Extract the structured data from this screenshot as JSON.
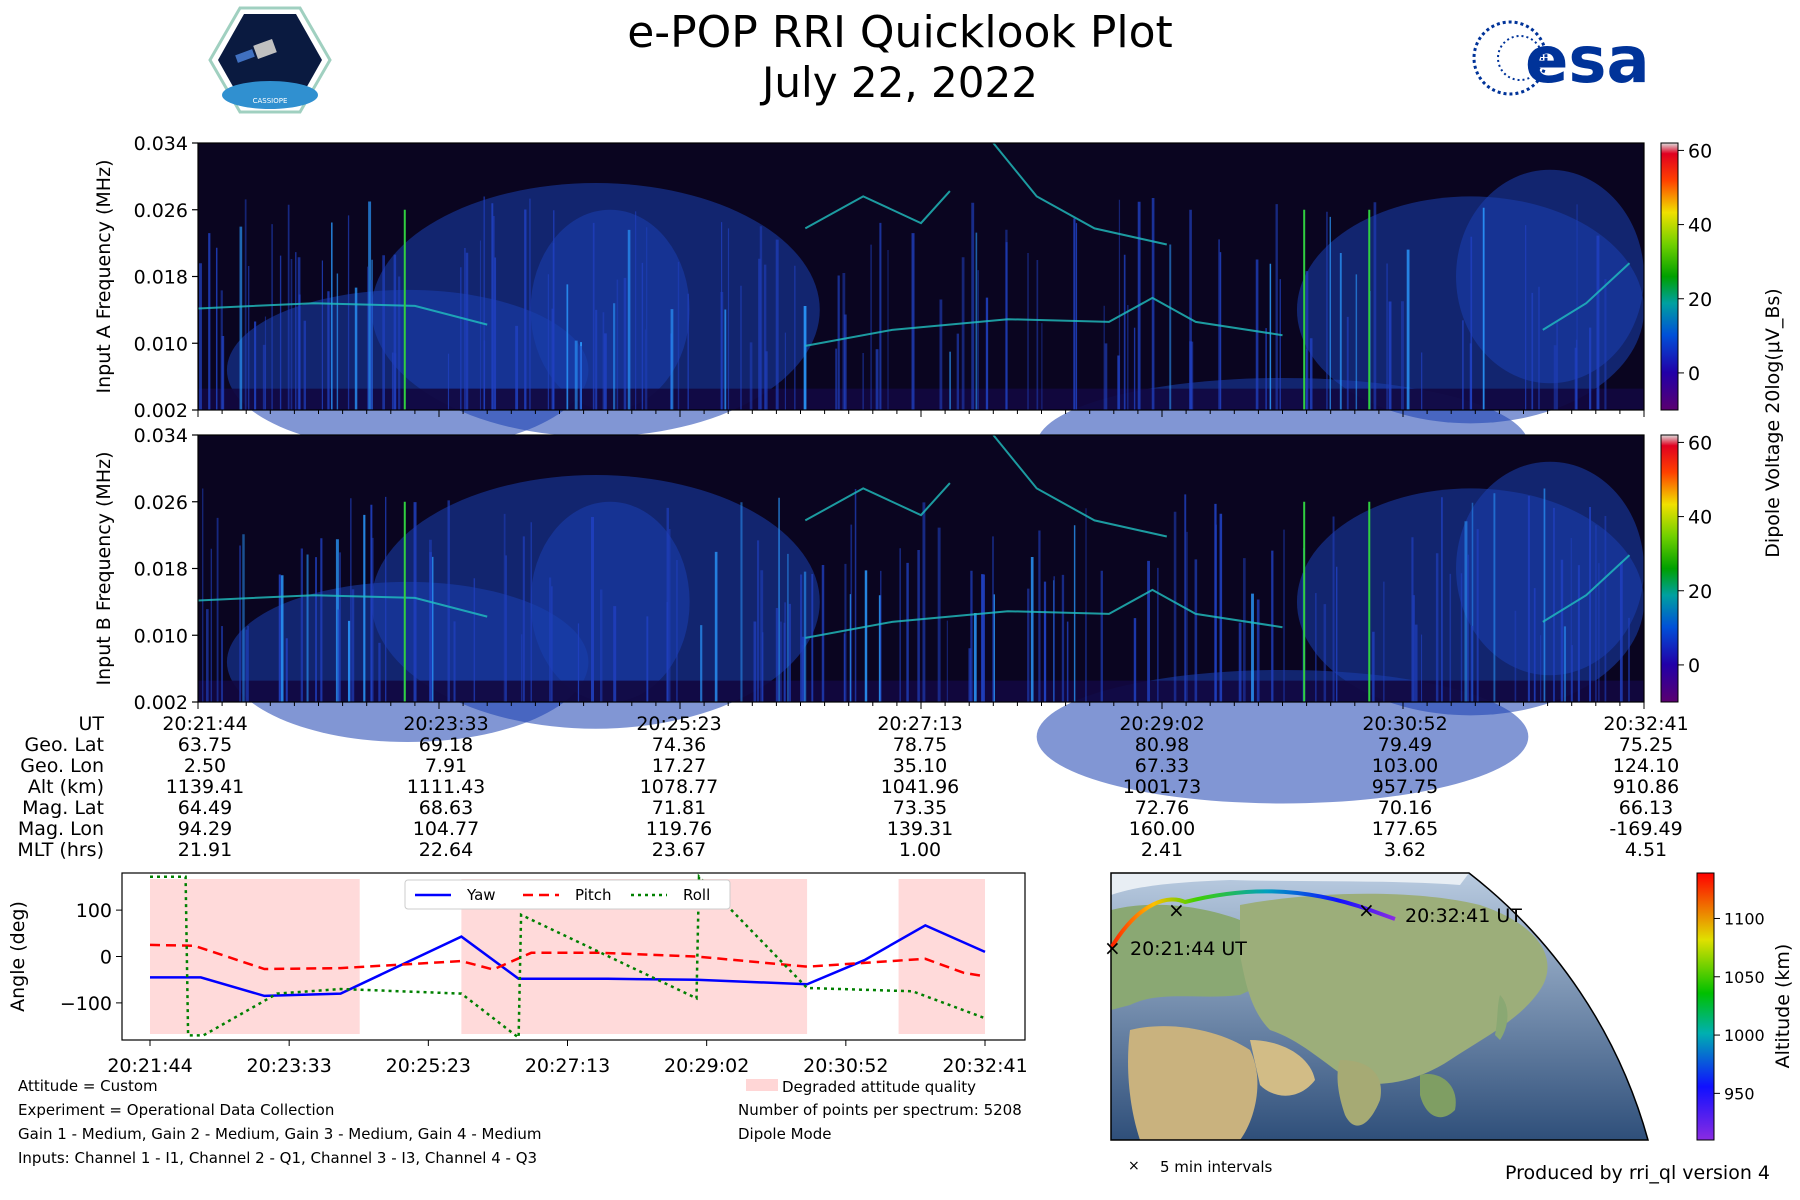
{
  "header": {
    "title": "e-POP RRI Quicklook Plot",
    "date": "July 22, 2022",
    "left_logo_text": "CASSIOPE",
    "right_logo_text": "esa"
  },
  "colors": {
    "spectrogram_bg": "#0a0520",
    "yaw": "#0000ff",
    "pitch": "#ff0000",
    "roll": "#008000",
    "degraded": "#ffdada",
    "esa_blue": "#003399"
  },
  "chart_data": [
    {
      "type": "heatmap",
      "ylabel": "Input A Frequency (MHz)",
      "yticks": [
        "0.002",
        "0.010",
        "0.018",
        "0.026",
        "0.034"
      ],
      "ylim": [
        0.002,
        0.034
      ],
      "colorbar": {
        "label": "Dipole Voltage 20log(μV_Bs)",
        "ticks": [
          "0",
          "20",
          "40",
          "60"
        ],
        "range": [
          -10,
          62
        ]
      }
    },
    {
      "type": "heatmap",
      "ylabel": "Input B Frequency (MHz)",
      "yticks": [
        "0.002",
        "0.010",
        "0.018",
        "0.026",
        "0.034"
      ],
      "ylim": [
        0.002,
        0.034
      ],
      "colorbar": {
        "label": "Dipole Voltage 20log(μV_Bs)",
        "ticks": [
          "0",
          "20",
          "40",
          "60"
        ],
        "range": [
          -10,
          62
        ]
      }
    },
    {
      "type": "table",
      "row_labels": [
        "UT",
        "Geo. Lat",
        "Geo. Lon",
        "Alt (km)",
        "Mag. Lat",
        "Mag. Lon",
        "MLT (hrs)"
      ],
      "columns": [
        [
          "20:21:44",
          "63.75",
          "2.50",
          "1139.41",
          "64.49",
          "94.29",
          "21.91"
        ],
        [
          "20:23:33",
          "69.18",
          "7.91",
          "1111.43",
          "68.63",
          "104.77",
          "22.64"
        ],
        [
          "20:25:23",
          "74.36",
          "17.27",
          "1078.77",
          "71.81",
          "119.76",
          "23.67"
        ],
        [
          "20:27:13",
          "78.75",
          "35.10",
          "1041.96",
          "73.35",
          "139.31",
          "1.00"
        ],
        [
          "20:29:02",
          "80.98",
          "67.33",
          "1001.73",
          "72.76",
          "160.00",
          "2.41"
        ],
        [
          "20:30:52",
          "79.49",
          "103.00",
          "957.75",
          "70.16",
          "177.65",
          "3.62"
        ],
        [
          "20:32:41",
          "75.25",
          "124.10",
          "910.86",
          "66.13",
          "-169.49",
          "4.51"
        ]
      ]
    },
    {
      "type": "line",
      "ylabel": "Angle (deg)",
      "yticks": [
        "100",
        "0",
        "−100"
      ],
      "ylim": [
        -180,
        180
      ],
      "xlim": [
        0,
        657
      ],
      "xticks": [
        "20:21:44",
        "20:23:33",
        "20:25:23",
        "20:27:13",
        "20:29:02",
        "20:30:52",
        "20:32:41"
      ],
      "legend": "top-center",
      "degraded_intervals": [
        [
          0,
          165
        ],
        [
          245,
          517
        ],
        [
          589,
          657
        ]
      ],
      "series": [
        {
          "name": "Yaw",
          "style": "solid",
          "x": [
            0,
            40,
            90,
            150,
            245,
            290,
            360,
            430,
            517,
            562,
            610,
            657
          ],
          "y": [
            -45,
            -45,
            -85,
            -80,
            43,
            -48,
            -48,
            -50,
            -60,
            -8,
            67,
            10
          ]
        },
        {
          "name": "Pitch",
          "style": "dashed",
          "x": [
            0,
            35,
            90,
            150,
            245,
            270,
            300,
            355,
            430,
            517,
            610,
            640,
            657
          ],
          "y": [
            25,
            23,
            -27,
            -25,
            -10,
            -28,
            8,
            8,
            0,
            -22,
            -5,
            -35,
            -43
          ]
        },
        {
          "name": "Roll",
          "style": "dotted",
          "x": [
            0,
            28,
            30,
            42,
            100,
            150,
            245,
            290,
            292,
            430,
            432,
            517,
            600,
            657
          ],
          "y": [
            172,
            172,
            -170,
            -170,
            -80,
            -70,
            -80,
            -175,
            90,
            -90,
            172,
            -68,
            -75,
            -133
          ]
        }
      ]
    },
    {
      "type": "scatter",
      "title": "",
      "colorbar": {
        "label": "Altitude (km)",
        "ticks": [
          "950",
          "1000",
          "1050",
          "1100"
        ],
        "range": [
          910,
          1139
        ]
      },
      "track_labels": [
        "20:21:44 UT",
        "20:32:41 UT"
      ],
      "legend": "× 5 min intervals"
    }
  ],
  "footer": {
    "attitude": "Attitude = Custom",
    "experiment": "Experiment = Operational Data Collection",
    "gains": "Gain 1 - Medium, Gain 2 - Medium, Gain 3 - Medium, Gain 4 - Medium",
    "inputs": "Inputs: Channel 1 - I1, Channel 2 - Q1, Channel 3 - I3, Channel 4 - Q3",
    "degraded_legend": "Degraded attitude quality",
    "points": "Number of points per spectrum: 5208",
    "mode": "Dipole Mode",
    "interval_legend": "5 min intervals",
    "produced": "Produced by rri_ql version 4"
  }
}
